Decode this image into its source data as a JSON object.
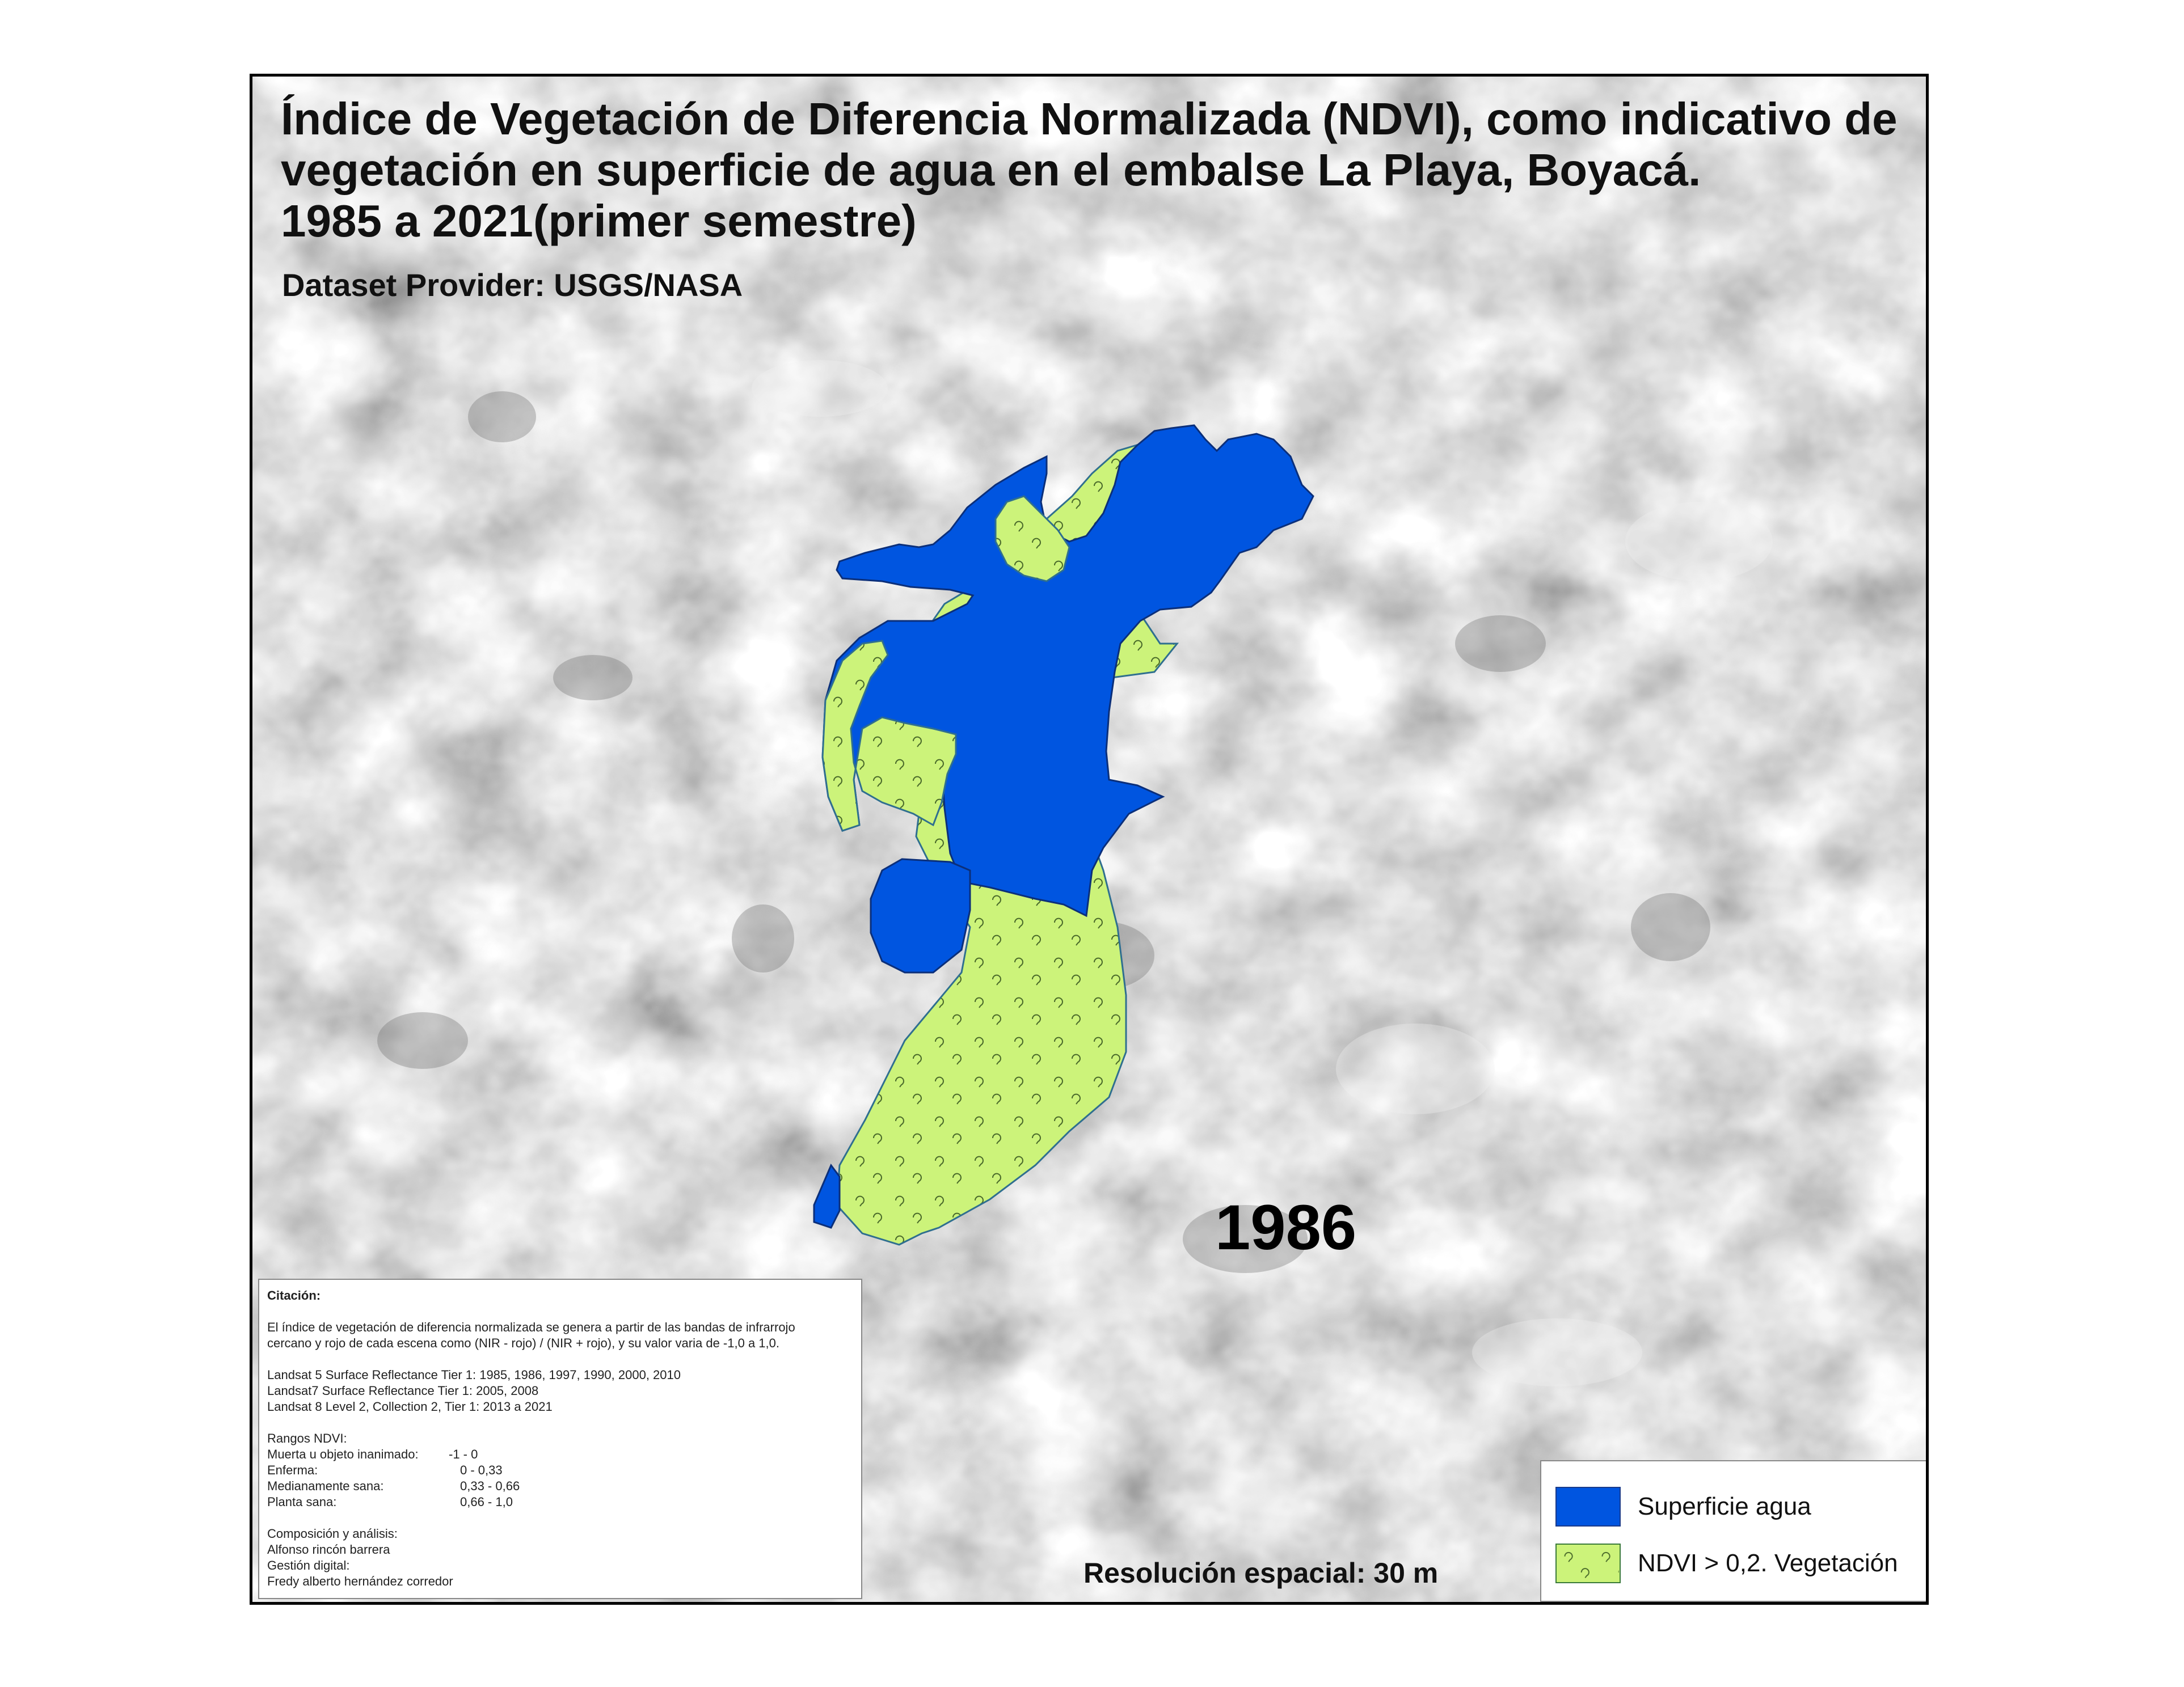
{
  "title": {
    "line1": "Índice de Vegetación de Diferencia Normalizada (NDVI), como indicativo de",
    "line2": "vegetación en superficie de agua en el embalse La Playa, Boyacá.",
    "line3": "1985 a 2021(primer semestre)"
  },
  "provider": "Dataset Provider: USGS/NASA",
  "year": "1986",
  "resolution": "Resolución espacial: 30 m",
  "citation": {
    "heading": "Citación:",
    "desc1": "El índice de vegetación de diferencia normalizada se genera a partir de las bandas de infrarrojo",
    "desc2": "cercano y rojo de cada escena como (NIR - rojo) / (NIR + rojo), y su valor varia de -1,0 a 1,0.",
    "sources": [
      "Landsat 5 Surface Reflectance Tier 1: 1985, 1986, 1997, 1990, 2000, 2010",
      "Landsat7 Surface Reflectance Tier 1: 2005, 2008",
      "Landsat 8 Level 2, Collection 2, Tier 1: 2013 a 2021"
    ],
    "ranges_heading": "Rangos NDVI:",
    "ranges": [
      {
        "label": "Muerta u objeto inanimado:",
        "value": "-1 - 0"
      },
      {
        "label": "Enferma:",
        "value": "0 - 0,33"
      },
      {
        "label": "Medianamente sana:",
        "value": "0,33 - 0,66"
      },
      {
        "label": "Planta sana:",
        "value": "0,66 - 1,0"
      }
    ],
    "composition_heading": "Composición y análisis:",
    "composition_name": "Alfonso rincón barrera",
    "digital_heading": "Gestión digital:",
    "digital_name": "Fredy alberto hernández corredor"
  },
  "legend": {
    "water": {
      "label": "Superficie agua",
      "color": "#0055e0"
    },
    "vegetation": {
      "label": "NDVI > 0,2.  Vegetación",
      "color": "#ccf37a"
    }
  }
}
